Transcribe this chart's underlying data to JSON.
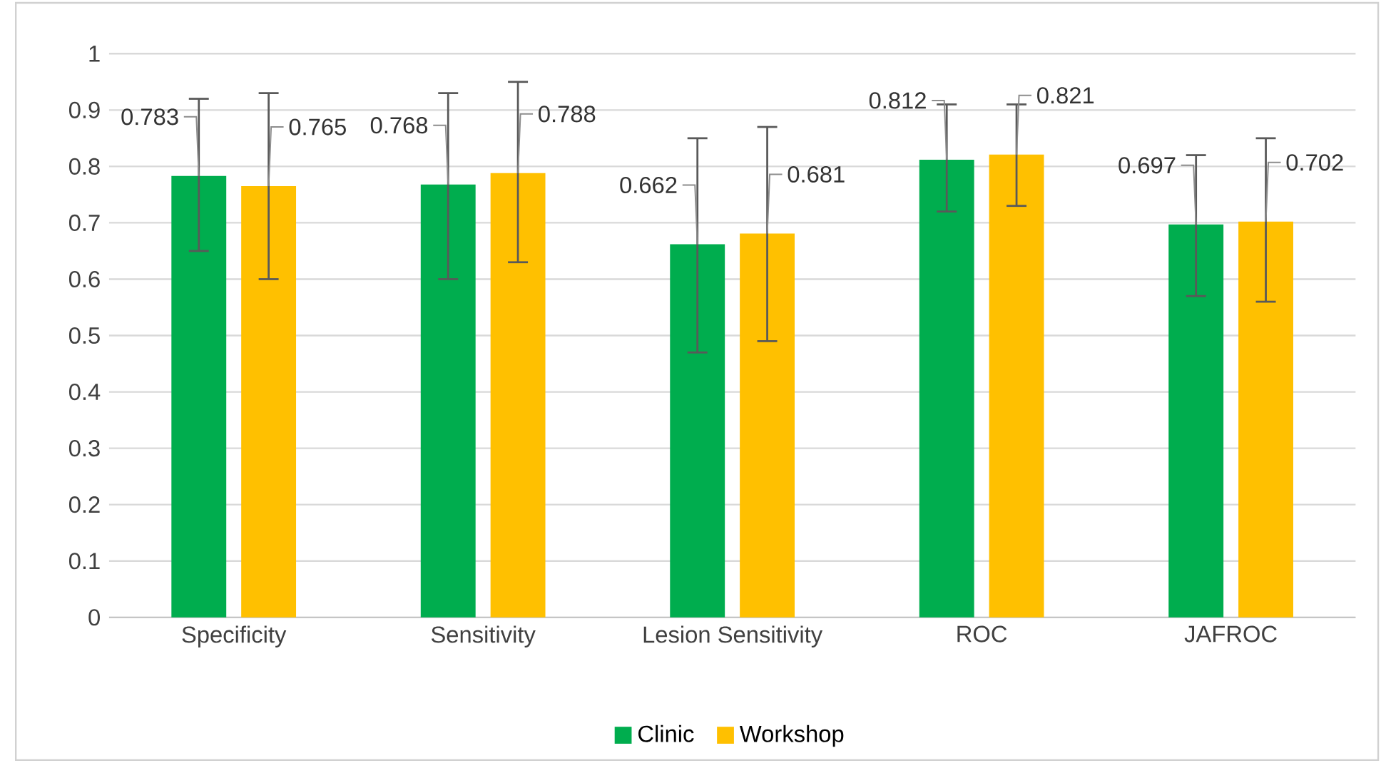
{
  "chart_data": {
    "type": "bar",
    "categories": [
      "Specificity",
      "Sensitivity",
      "Lesion Sensitivity",
      "ROC",
      "JAFROC"
    ],
    "series": [
      {
        "name": "Clinic",
        "color": "#00ad4e",
        "values": [
          0.783,
          0.768,
          0.662,
          0.812,
          0.697
        ],
        "errors": [
          [
            0.65,
            0.92
          ],
          [
            0.6,
            0.93
          ],
          [
            0.47,
            0.85
          ],
          [
            0.72,
            0.91
          ],
          [
            0.57,
            0.82
          ]
        ]
      },
      {
        "name": "Workshop",
        "color": "#ffc000",
        "values": [
          0.765,
          0.788,
          0.681,
          0.821,
          0.702
        ],
        "errors": [
          [
            0.6,
            0.93
          ],
          [
            0.63,
            0.95
          ],
          [
            0.49,
            0.87
          ],
          [
            0.73,
            0.91
          ],
          [
            0.56,
            0.85
          ]
        ]
      }
    ],
    "ylim": [
      0,
      1
    ],
    "yticks": [
      0,
      0.1,
      0.2,
      0.3,
      0.4,
      0.5,
      0.6,
      0.7,
      0.8,
      0.9,
      1
    ],
    "grid": "y",
    "legend": "bottom",
    "data_labels": true
  }
}
